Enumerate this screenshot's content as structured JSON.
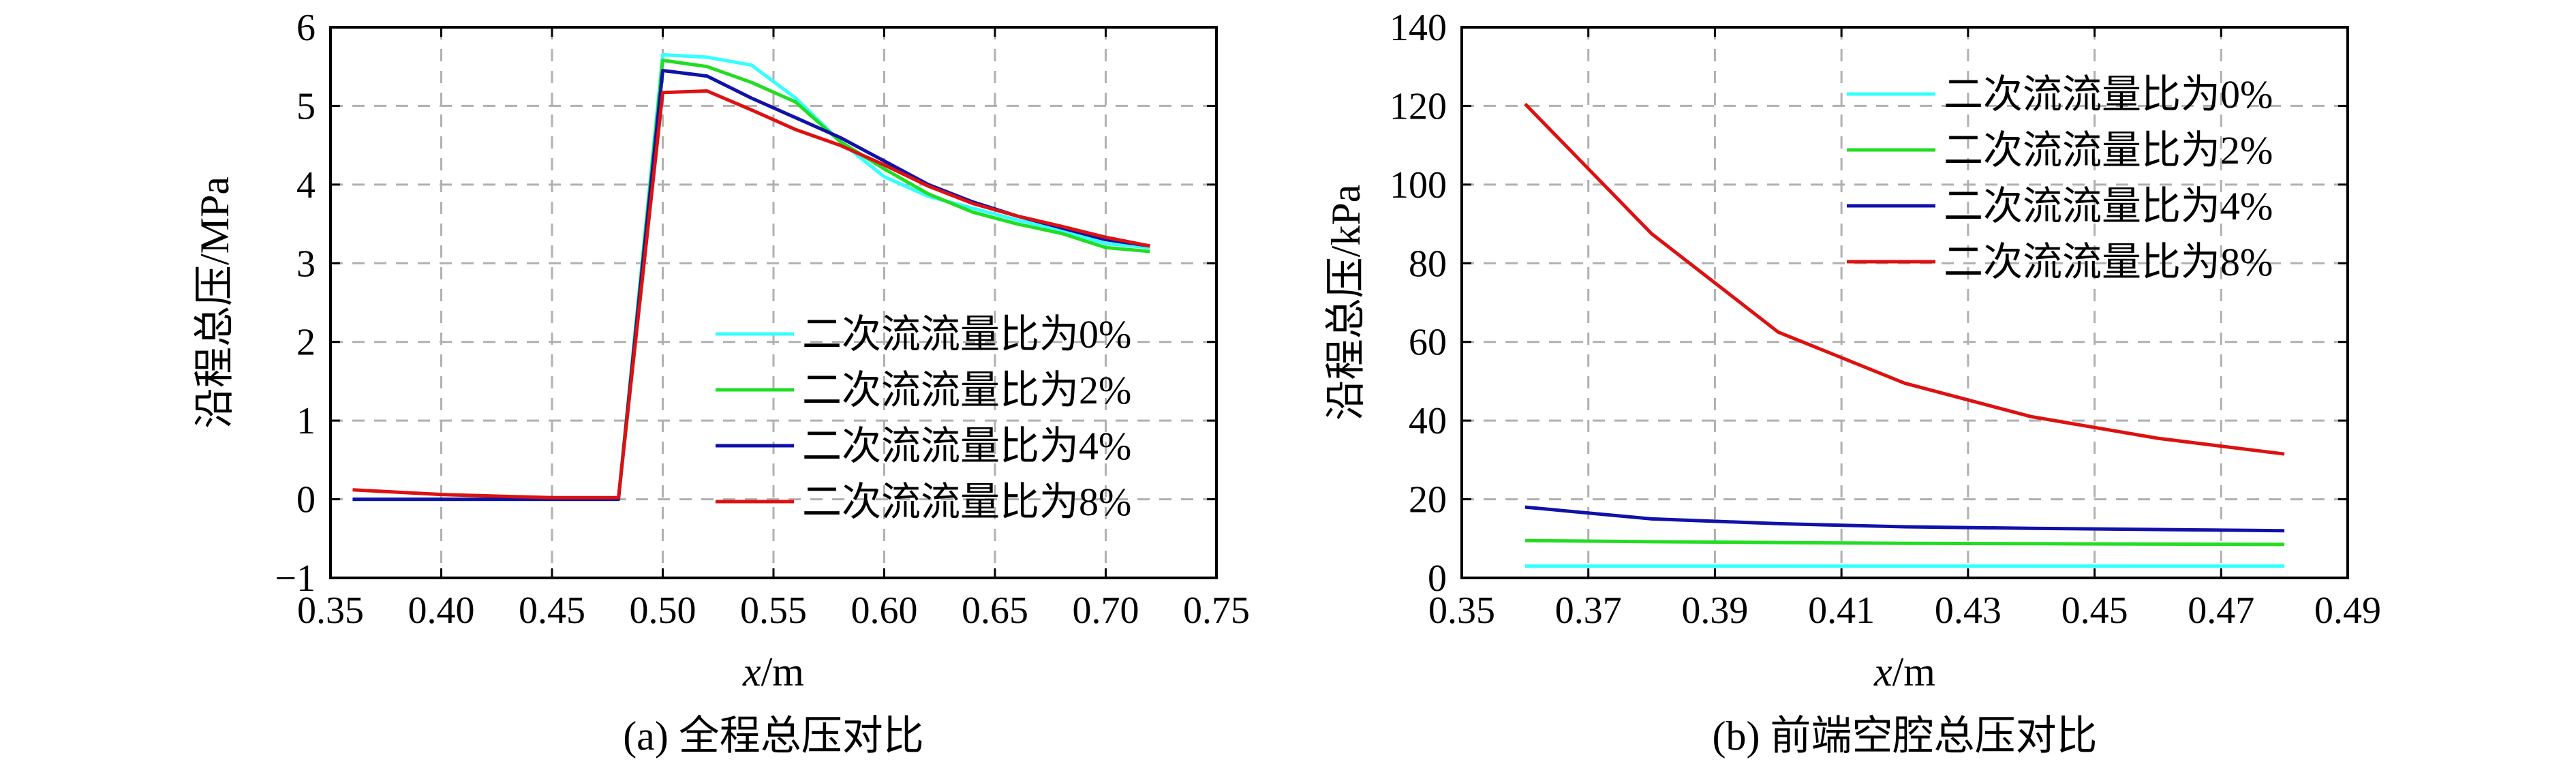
{
  "chart_data": [
    {
      "type": "line",
      "caption": "(a) 全程总压对比",
      "xlabel": "x/m",
      "ylabel": "沿程总压/MPa",
      "xlim": [
        0.35,
        0.75
      ],
      "ylim": [
        -1,
        6
      ],
      "xticks": [
        "0.35",
        "0.40",
        "0.45",
        "0.50",
        "0.55",
        "0.60",
        "0.65",
        "0.70",
        "0.75"
      ],
      "yticks": [
        "−1",
        "0",
        "1",
        "2",
        "3",
        "4",
        "5",
        "6"
      ],
      "grid": true,
      "legend_position": "lower-right",
      "series": [
        {
          "name": "二次流流量比为0%",
          "color": "#33ffff",
          "x": [
            0.36,
            0.48,
            0.5,
            0.52,
            0.54,
            0.56,
            0.58,
            0.6,
            0.62,
            0.64,
            0.66,
            0.68,
            0.7,
            0.72
          ],
          "y": [
            0.0,
            0.0,
            5.65,
            5.62,
            5.52,
            5.1,
            4.55,
            4.1,
            3.85,
            3.7,
            3.55,
            3.42,
            3.25,
            3.2
          ]
        },
        {
          "name": "二次流流量比为2%",
          "color": "#22dd22",
          "x": [
            0.36,
            0.48,
            0.5,
            0.52,
            0.54,
            0.56,
            0.58,
            0.6,
            0.62,
            0.64,
            0.66,
            0.68,
            0.7,
            0.72
          ],
          "y": [
            0.0,
            0.0,
            5.58,
            5.5,
            5.3,
            5.05,
            4.55,
            4.2,
            3.88,
            3.65,
            3.5,
            3.38,
            3.2,
            3.15
          ]
        },
        {
          "name": "二次流流量比为4%",
          "color": "#1111aa",
          "x": [
            0.36,
            0.48,
            0.5,
            0.52,
            0.54,
            0.56,
            0.58,
            0.6,
            0.62,
            0.64,
            0.66,
            0.68,
            0.7,
            0.72
          ],
          "y": [
            0.0,
            0.0,
            5.45,
            5.38,
            5.1,
            4.85,
            4.6,
            4.3,
            4.0,
            3.78,
            3.6,
            3.45,
            3.3,
            3.22
          ]
        },
        {
          "name": "二次流流量比为8%",
          "color": "#dd1111",
          "x": [
            0.36,
            0.4,
            0.45,
            0.48,
            0.5,
            0.52,
            0.54,
            0.56,
            0.58,
            0.6,
            0.62,
            0.64,
            0.66,
            0.68,
            0.7,
            0.72
          ],
          "y": [
            0.12,
            0.06,
            0.02,
            0.02,
            5.17,
            5.19,
            4.95,
            4.7,
            4.5,
            4.25,
            3.98,
            3.76,
            3.6,
            3.47,
            3.33,
            3.22
          ]
        }
      ]
    },
    {
      "type": "line",
      "caption": "(b) 前端空腔总压对比",
      "xlabel": "x/m",
      "ylabel": "沿程总压/kPa",
      "xlim": [
        0.35,
        0.49
      ],
      "ylim": [
        0,
        140
      ],
      "xticks": [
        "0.35",
        "0.37",
        "0.39",
        "0.41",
        "0.43",
        "0.45",
        "0.47",
        "0.49"
      ],
      "yticks": [
        "0",
        "20",
        "40",
        "60",
        "80",
        "100",
        "120",
        "140"
      ],
      "grid": true,
      "legend_position": "top-right",
      "series": [
        {
          "name": "二次流流量比为0%",
          "color": "#33ffff",
          "x": [
            0.36,
            0.38,
            0.4,
            0.42,
            0.44,
            0.46,
            0.48
          ],
          "y": [
            3.0,
            3.0,
            3.0,
            3.0,
            3.0,
            3.0,
            3.0
          ]
        },
        {
          "name": "二次流流量比为2%",
          "color": "#22dd22",
          "x": [
            0.36,
            0.38,
            0.4,
            0.42,
            0.44,
            0.46,
            0.48
          ],
          "y": [
            9.5,
            9.2,
            9.0,
            8.8,
            8.7,
            8.6,
            8.5
          ]
        },
        {
          "name": "二次流流量比为4%",
          "color": "#1111aa",
          "x": [
            0.36,
            0.38,
            0.4,
            0.42,
            0.44,
            0.46,
            0.48
          ],
          "y": [
            18.0,
            15.0,
            13.8,
            13.0,
            12.6,
            12.3,
            12.0
          ]
        },
        {
          "name": "二次流流量比为8%",
          "color": "#dd1111",
          "x": [
            0.36,
            0.38,
            0.4,
            0.42,
            0.44,
            0.46,
            0.48
          ],
          "y": [
            120.5,
            87.5,
            62.5,
            49.5,
            41.0,
            35.5,
            31.5
          ]
        }
      ]
    }
  ]
}
